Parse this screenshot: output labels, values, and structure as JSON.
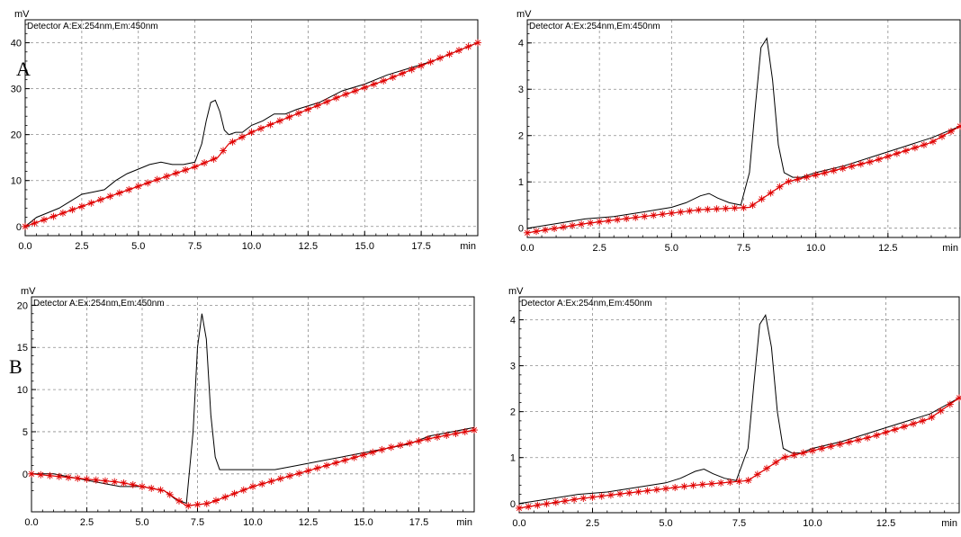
{
  "panel_labels": {
    "A": "A",
    "B": "B"
  },
  "colors": {
    "signal": "#000000",
    "baseline": "#e00000",
    "grid": "#8c8c8c",
    "frame": "#000000"
  },
  "chart_data": [
    {
      "type": "line",
      "detector_label": "Detector A:Ex:254nm,Em:450nm",
      "y_unit": "mV",
      "x_unit": "min",
      "xlim": [
        0,
        20
      ],
      "ylim": [
        -2,
        45
      ],
      "x_ticks": [
        0,
        2.5,
        5,
        7.5,
        10,
        12.5,
        15,
        17.5
      ],
      "x_tick_labels": [
        "0.0",
        "2.5",
        "5.0",
        "7.5",
        "10.0",
        "12.5",
        "15.0",
        "17.5"
      ],
      "y_ticks": [
        0,
        10,
        20,
        30,
        40
      ],
      "y_tick_labels": [
        "0",
        "10",
        "20",
        "30",
        "40"
      ],
      "grid": true,
      "series": [
        {
          "role": "signal",
          "x": [
            0,
            0.5,
            1,
            1.5,
            2,
            2.5,
            3,
            3.5,
            4,
            4.5,
            5,
            5.5,
            6,
            6.5,
            7,
            7.5,
            7.8,
            8.0,
            8.2,
            8.4,
            8.6,
            8.8,
            9.0,
            9.3,
            9.6,
            10,
            10.5,
            11,
            11.5,
            12,
            13,
            14,
            15,
            16,
            17,
            18,
            19,
            20
          ],
          "y": [
            0,
            2,
            3,
            4,
            5.5,
            7,
            7.5,
            8,
            10,
            11.5,
            12.5,
            13.5,
            14,
            13.5,
            13.5,
            14,
            18,
            23,
            27,
            27.5,
            25,
            21,
            20,
            20.5,
            20.5,
            22,
            23,
            24.5,
            24.5,
            25.5,
            27,
            29.5,
            31,
            33,
            34.5,
            36,
            38,
            40
          ]
        },
        {
          "role": "baseline",
          "x": [
            0,
            2,
            4,
            6,
            7.5,
            8.5,
            9,
            10,
            12,
            14,
            16,
            18,
            20
          ],
          "y": [
            0,
            3.5,
            7,
            10.5,
            13,
            15,
            18,
            20.5,
            24.5,
            28.5,
            32,
            36,
            40
          ]
        }
      ]
    },
    {
      "type": "line",
      "detector_label": "Detector A:Ex:254nm,Em:450nm",
      "y_unit": "mV",
      "x_unit": "min",
      "xlim": [
        0,
        15
      ],
      "ylim": [
        -0.2,
        4.5
      ],
      "x_ticks": [
        0,
        2.5,
        5,
        7.5,
        10,
        12.5
      ],
      "x_tick_labels": [
        "0.0",
        "2.5",
        "5.0",
        "7.5",
        "10.0",
        "12.5"
      ],
      "y_ticks": [
        0,
        1,
        2,
        3,
        4
      ],
      "y_tick_labels": [
        "0",
        "1",
        "2",
        "3",
        "4"
      ],
      "grid": true,
      "series": [
        {
          "role": "signal",
          "x": [
            0,
            1,
            2,
            3,
            4,
            5,
            5.5,
            6,
            6.3,
            6.6,
            7,
            7.4,
            7.7,
            7.9,
            8.1,
            8.3,
            8.5,
            8.7,
            8.9,
            9.2,
            9.5,
            10,
            11,
            12,
            13,
            14,
            15
          ],
          "y": [
            0,
            0.1,
            0.2,
            0.25,
            0.35,
            0.45,
            0.55,
            0.7,
            0.75,
            0.65,
            0.55,
            0.5,
            1.2,
            2.6,
            3.9,
            4.1,
            3.2,
            1.8,
            1.2,
            1.1,
            1.1,
            1.2,
            1.35,
            1.55,
            1.75,
            1.95,
            2.2
          ]
        },
        {
          "role": "baseline",
          "x": [
            0,
            2,
            4,
            6,
            7.7,
            9,
            10,
            12,
            14,
            15
          ],
          "y": [
            -0.1,
            0.1,
            0.25,
            0.4,
            0.45,
            1.0,
            1.15,
            1.45,
            1.85,
            2.2
          ]
        }
      ]
    },
    {
      "type": "line",
      "detector_label": "Detector A:Ex:254nm,Em:450nm",
      "y_unit": "mV",
      "x_unit": "min",
      "xlim": [
        0,
        20
      ],
      "ylim": [
        -4.5,
        21
      ],
      "x_ticks": [
        0,
        2.5,
        5,
        7.5,
        10,
        12.5,
        15,
        17.5
      ],
      "x_tick_labels": [
        "0.0",
        "2.5",
        "5.0",
        "7.5",
        "10.0",
        "12.5",
        "15.0",
        "17.5"
      ],
      "y_ticks": [
        0,
        5,
        10,
        15,
        20
      ],
      "y_tick_labels": [
        "0",
        "5",
        "10",
        "15",
        "20"
      ],
      "grid": true,
      "series": [
        {
          "role": "signal",
          "x": [
            0,
            1,
            2,
            3,
            4,
            5,
            6,
            6.5,
            7,
            7.3,
            7.5,
            7.7,
            7.9,
            8.1,
            8.3,
            8.5,
            9,
            10,
            11,
            12,
            13,
            14,
            15,
            16,
            17,
            18,
            19,
            20
          ],
          "y": [
            0,
            0,
            -0.5,
            -1,
            -1.5,
            -1.5,
            -2,
            -3,
            -3.5,
            5,
            15,
            19,
            16,
            7,
            2,
            0.5,
            0.5,
            0.5,
            0.5,
            1,
            1.5,
            2,
            2.5,
            3,
            3.5,
            4.5,
            5,
            5.5
          ]
        },
        {
          "role": "baseline",
          "x": [
            0,
            2,
            4,
            6,
            7,
            8,
            10,
            12,
            14,
            16,
            18,
            20
          ],
          "y": [
            0,
            -0.5,
            -1,
            -2,
            -3.8,
            -3.5,
            -1.5,
            0,
            1.5,
            3,
            4.2,
            5.2
          ]
        }
      ]
    },
    {
      "type": "line",
      "detector_label": "Detector A:Ex:254nm,Em:450nm",
      "y_unit": "mV",
      "x_unit": "min",
      "xlim": [
        0,
        15
      ],
      "ylim": [
        -0.2,
        4.5
      ],
      "x_ticks": [
        0,
        2.5,
        5,
        7.5,
        10,
        12.5
      ],
      "x_tick_labels": [
        "0.0",
        "2.5",
        "5.0",
        "7.5",
        "10.0",
        "12.5"
      ],
      "y_ticks": [
        0,
        1,
        2,
        3,
        4
      ],
      "y_tick_labels": [
        "0",
        "1",
        "2",
        "3",
        "4"
      ],
      "grid": true,
      "series": [
        {
          "role": "signal",
          "x": [
            0,
            1,
            2,
            3,
            4,
            5,
            5.5,
            6,
            6.3,
            6.6,
            7,
            7.4,
            7.8,
            8.0,
            8.2,
            8.4,
            8.6,
            8.8,
            9.0,
            9.3,
            9.6,
            10,
            11,
            12,
            13,
            14,
            15
          ],
          "y": [
            0,
            0.1,
            0.2,
            0.25,
            0.35,
            0.45,
            0.55,
            0.7,
            0.75,
            0.65,
            0.55,
            0.5,
            1.2,
            2.6,
            3.9,
            4.1,
            3.4,
            2.0,
            1.2,
            1.1,
            1.1,
            1.2,
            1.35,
            1.55,
            1.75,
            1.95,
            2.3
          ]
        },
        {
          "role": "baseline",
          "x": [
            0,
            2,
            4,
            6,
            7.8,
            9,
            10,
            12,
            14,
            15
          ],
          "y": [
            -0.1,
            0.1,
            0.25,
            0.4,
            0.5,
            1.0,
            1.15,
            1.45,
            1.85,
            2.3
          ]
        }
      ]
    }
  ]
}
